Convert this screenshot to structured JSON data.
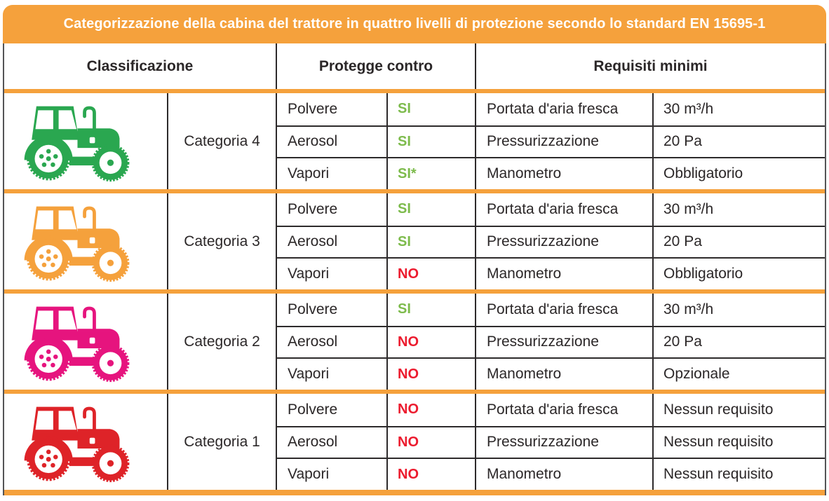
{
  "title": "Categorizzazione della cabina del trattore in quattro livelli di protezione secondo lo standard EN 15695-1",
  "columns": {
    "classification": "Classificazione",
    "protects_against": "Protegge contro",
    "min_requirements": "Requisiti minimi"
  },
  "colors": {
    "accent_orange": "#F5A13C",
    "si_green": "#7DBB4C",
    "no_red": "#EC1B2E",
    "text_dark": "#2B2728"
  },
  "categories": [
    {
      "label": "Categoria 4",
      "tractor_icon": "tractor-icon",
      "tractor_color": "#2AA750",
      "protections": [
        {
          "hazard": "Polvere",
          "value": "SI"
        },
        {
          "hazard": "Aerosol",
          "value": "SI"
        },
        {
          "hazard": "Vapori",
          "value": "SI*"
        }
      ],
      "requirements": [
        {
          "name": "Portata d'aria fresca",
          "value": "30 m³/h"
        },
        {
          "name": "Pressurizzazione",
          "value": "20 Pa"
        },
        {
          "name": "Manometro",
          "value": "Obbligatorio"
        }
      ]
    },
    {
      "label": "Categoria 3",
      "tractor_icon": "tractor-icon",
      "tractor_color": "#F5A13C",
      "protections": [
        {
          "hazard": "Polvere",
          "value": "SI"
        },
        {
          "hazard": "Aerosol",
          "value": "SI"
        },
        {
          "hazard": "Vapori",
          "value": "NO"
        }
      ],
      "requirements": [
        {
          "name": "Portata d'aria fresca",
          "value": "30 m³/h"
        },
        {
          "name": "Pressurizzazione",
          "value": "20 Pa"
        },
        {
          "name": "Manometro",
          "value": "Obbligatorio"
        }
      ]
    },
    {
      "label": "Categoria 2",
      "tractor_icon": "tractor-icon",
      "tractor_color": "#E6147E",
      "protections": [
        {
          "hazard": "Polvere",
          "value": "SI"
        },
        {
          "hazard": "Aerosol",
          "value": "NO"
        },
        {
          "hazard": "Vapori",
          "value": "NO"
        }
      ],
      "requirements": [
        {
          "name": "Portata d'aria fresca",
          "value": "30 m³/h"
        },
        {
          "name": "Pressurizzazione",
          "value": "20 Pa"
        },
        {
          "name": "Manometro",
          "value": "Opzionale"
        }
      ]
    },
    {
      "label": "Categoria 1",
      "tractor_icon": "tractor-icon",
      "tractor_color": "#DE2328",
      "protections": [
        {
          "hazard": "Polvere",
          "value": "NO"
        },
        {
          "hazard": "Aerosol",
          "value": "NO"
        },
        {
          "hazard": "Vapori",
          "value": "NO"
        }
      ],
      "requirements": [
        {
          "name": "Portata d'aria fresca",
          "value": "Nessun requisito"
        },
        {
          "name": "Pressurizzazione",
          "value": "Nessun requisito"
        },
        {
          "name": "Manometro",
          "value": "Nessun requisito"
        }
      ]
    }
  ]
}
